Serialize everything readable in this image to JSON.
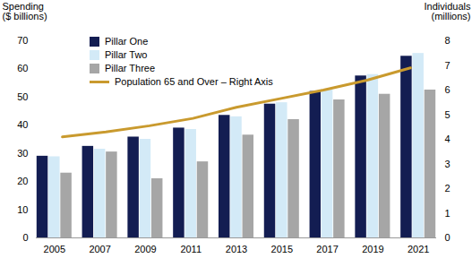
{
  "chart_data": {
    "type": "bar",
    "categories": [
      "2005",
      "2007",
      "2009",
      "2011",
      "2013",
      "2015",
      "2017",
      "2019",
      "2021"
    ],
    "series": [
      {
        "name": "Pillar One",
        "color": "#131d52",
        "values": [
          29,
          32.5,
          35.8,
          39,
          43.5,
          47.5,
          52,
          57.5,
          64.5
        ]
      },
      {
        "name": "Pillar Two",
        "color": "#d3eaf7",
        "values": [
          28.8,
          31.5,
          35,
          38.5,
          43,
          48,
          52.5,
          58,
          65.5
        ]
      },
      {
        "name": "Pillar Three",
        "color": "#a6a6a6",
        "values": [
          23,
          30.5,
          21,
          27,
          36.5,
          42,
          49,
          51,
          52.5
        ]
      },
      {
        "name": "Population 65 and Over – Right Axis",
        "type": "line",
        "axis": "y2",
        "color": "#c99a2e",
        "values": [
          4.1,
          4.3,
          4.55,
          4.85,
          5.3,
          5.65,
          6.0,
          6.4,
          6.9
        ]
      }
    ],
    "ylabel": "Spending\n($ billions)",
    "y2label": "Individuals\n(millions)",
    "ylim": [
      0,
      70
    ],
    "yticks": [
      0,
      10,
      20,
      30,
      40,
      50,
      60,
      70
    ],
    "y2lim": [
      0,
      8
    ],
    "y2ticks": [
      0,
      1,
      2,
      3,
      4,
      5,
      6,
      7,
      8
    ],
    "legend": "top-left"
  }
}
